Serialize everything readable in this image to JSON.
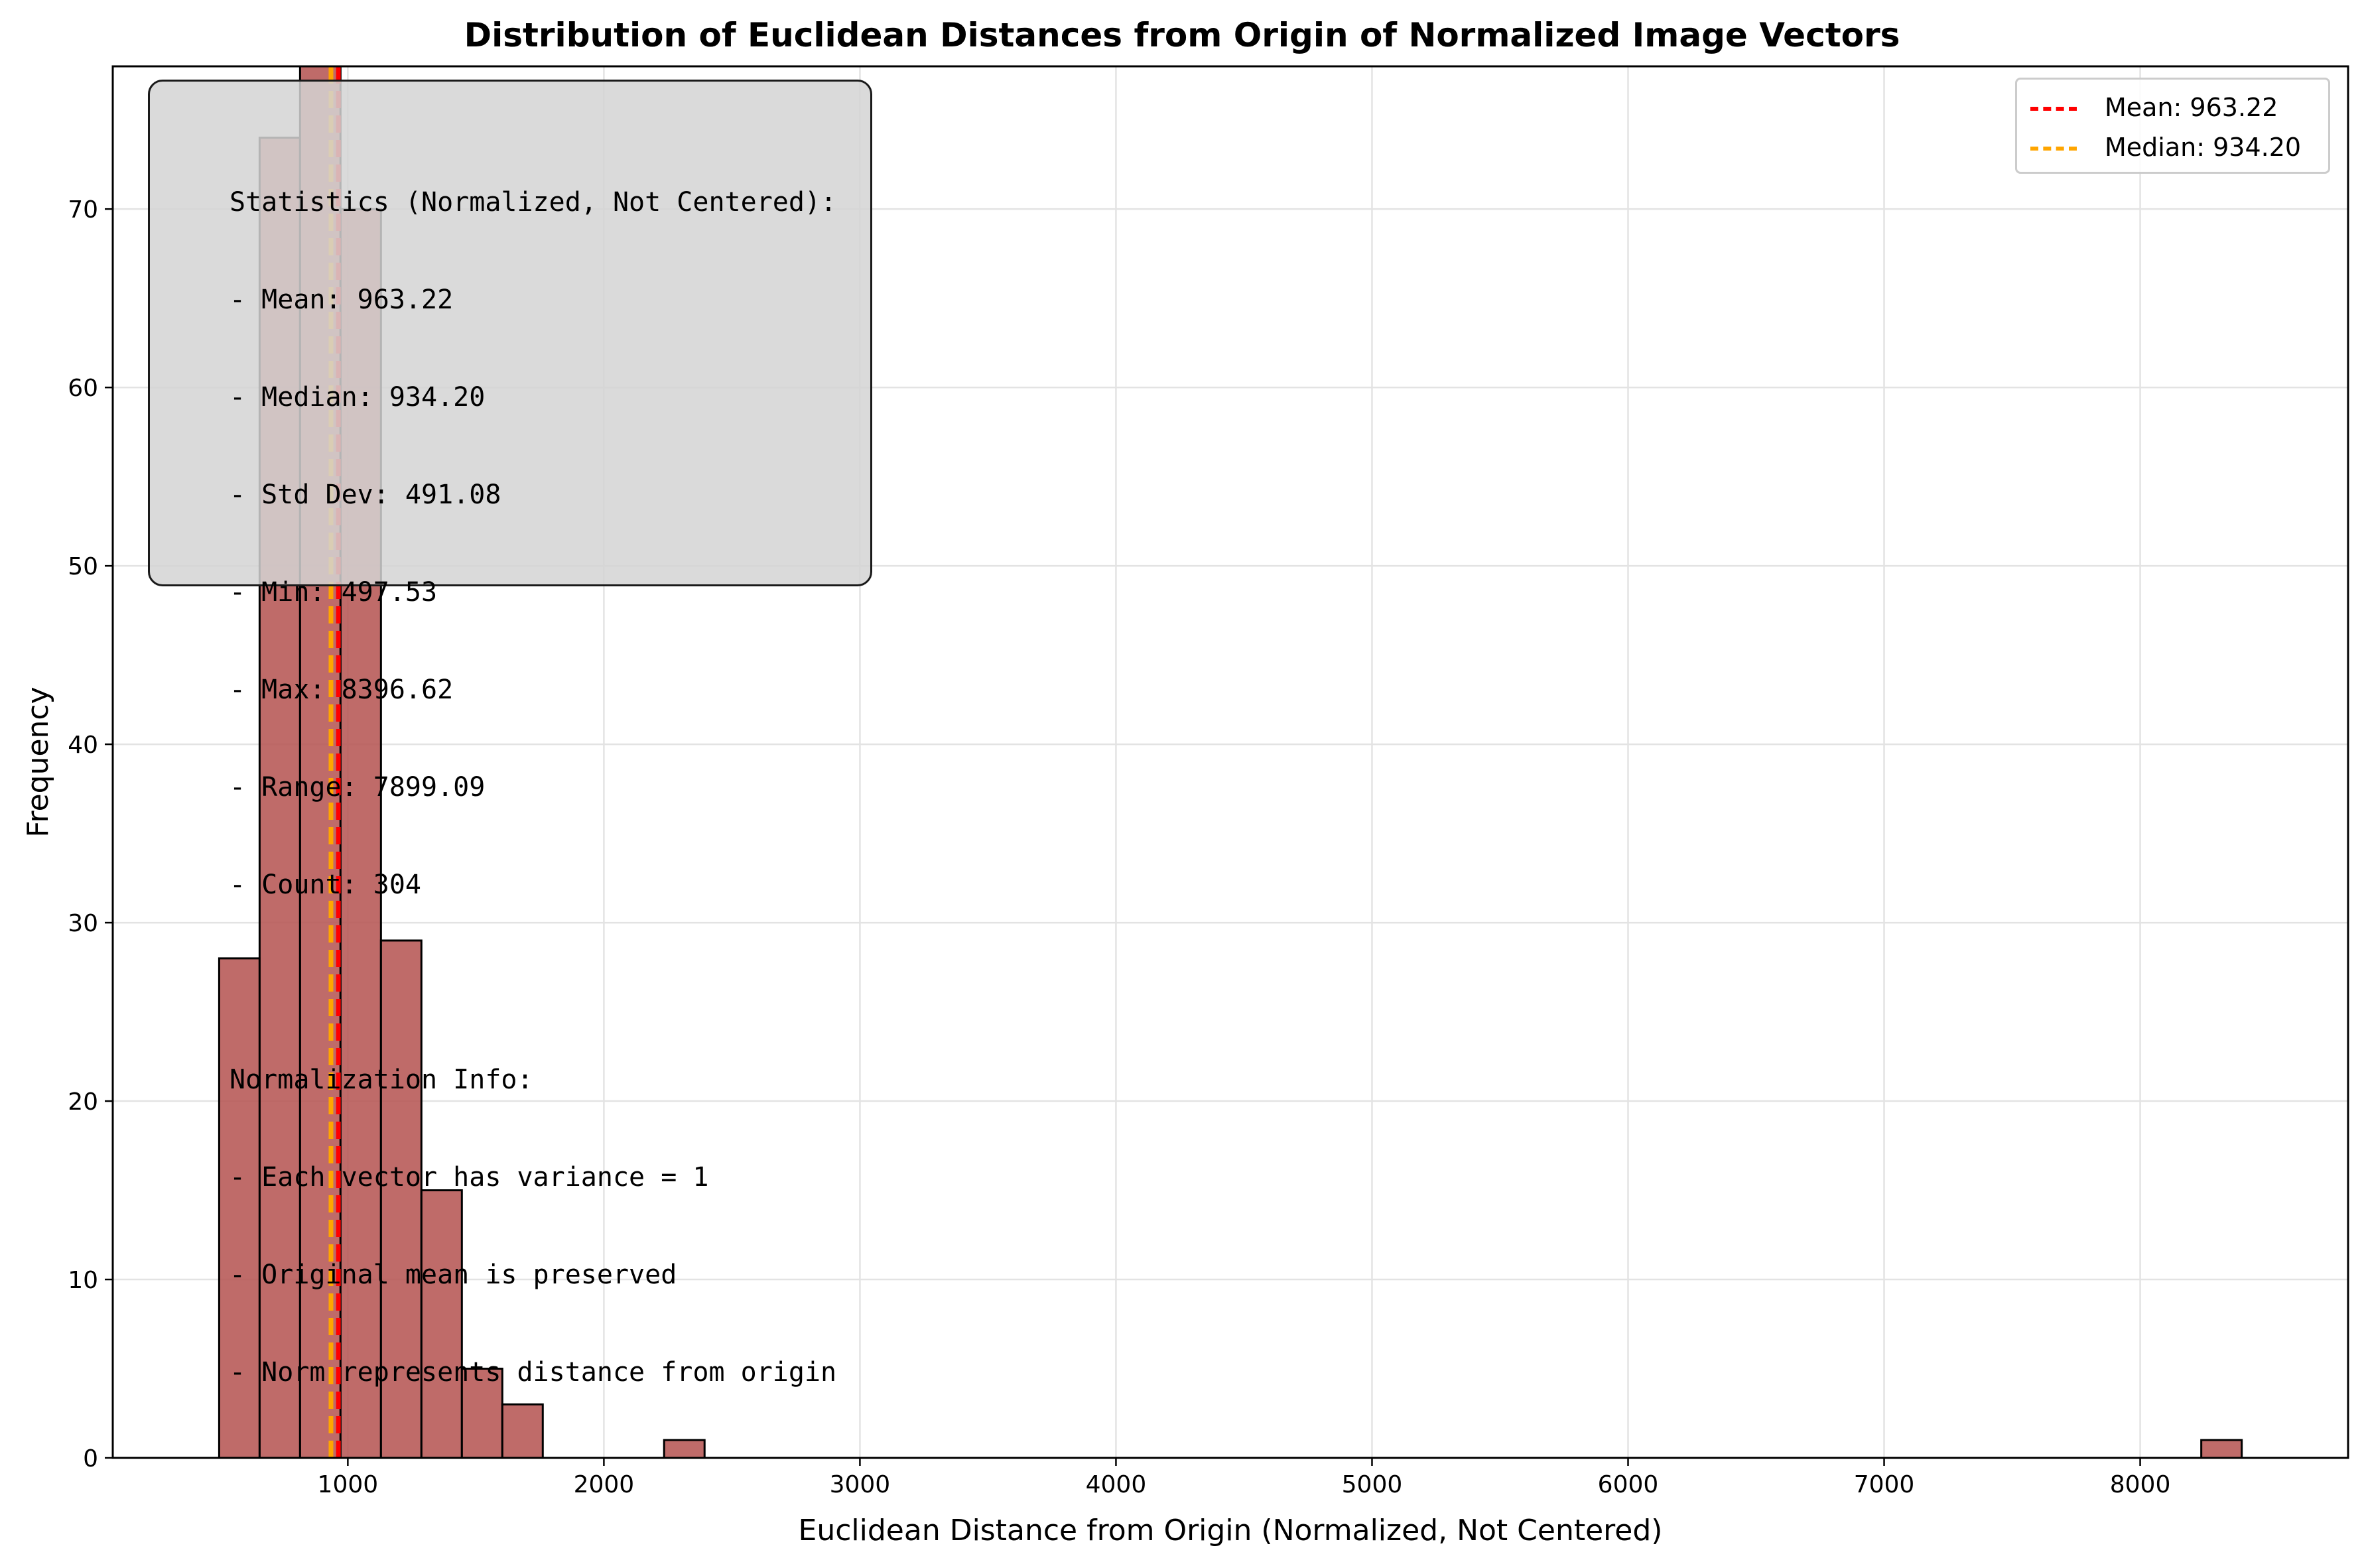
{
  "chart_data": {
    "type": "bar",
    "title": "Distribution of Euclidean Distances from Origin of Normalized Image Vectors",
    "xlabel": "Euclidean Distance from Origin (Normalized, Not Centered)",
    "ylabel": "Frequency",
    "xlim": [
      82,
      8812
    ],
    "ylim": [
      0,
      78
    ],
    "xticks": [
      1000,
      2000,
      3000,
      4000,
      5000,
      6000,
      7000,
      8000
    ],
    "yticks": [
      0,
      10,
      20,
      30,
      40,
      50,
      60,
      70
    ],
    "grid": true,
    "bar_color": "#b55553",
    "bins": [
      {
        "x0": 497.53,
        "x1": 655.51,
        "count": 28
      },
      {
        "x0": 655.51,
        "x1": 813.49,
        "count": 74
      },
      {
        "x0": 813.49,
        "x1": 971.47,
        "count": 78
      },
      {
        "x0": 971.47,
        "x1": 1129.45,
        "count": 70
      },
      {
        "x0": 1129.45,
        "x1": 1287.43,
        "count": 29
      },
      {
        "x0": 1287.43,
        "x1": 1445.41,
        "count": 15
      },
      {
        "x0": 1445.41,
        "x1": 1603.39,
        "count": 5
      },
      {
        "x0": 1603.39,
        "x1": 1761.37,
        "count": 3
      },
      {
        "x0": 2235.31,
        "x1": 2393.29,
        "count": 1
      },
      {
        "x0": 8238.64,
        "x1": 8396.62,
        "count": 1
      }
    ],
    "lines": [
      {
        "name": "Mean: 963.22",
        "x": 963.22,
        "color": "#ff0000",
        "style": "dashed"
      },
      {
        "name": "Median: 934.20",
        "x": 934.2,
        "color": "#ffa500",
        "style": "dashed"
      }
    ],
    "legend_position": "top-right"
  },
  "stats_box": {
    "lines": [
      "Statistics (Normalized, Not Centered):",
      "- Mean: 963.22",
      "- Median: 934.20",
      "- Std Dev: 491.08",
      "- Min: 497.53",
      "- Max: 8396.62",
      "- Range: 7899.09",
      "- Count: 304",
      "",
      "Normalization Info:",
      "- Each vector has variance = 1",
      "- Original mean is preserved",
      "- Norm represents distance from origin"
    ]
  }
}
